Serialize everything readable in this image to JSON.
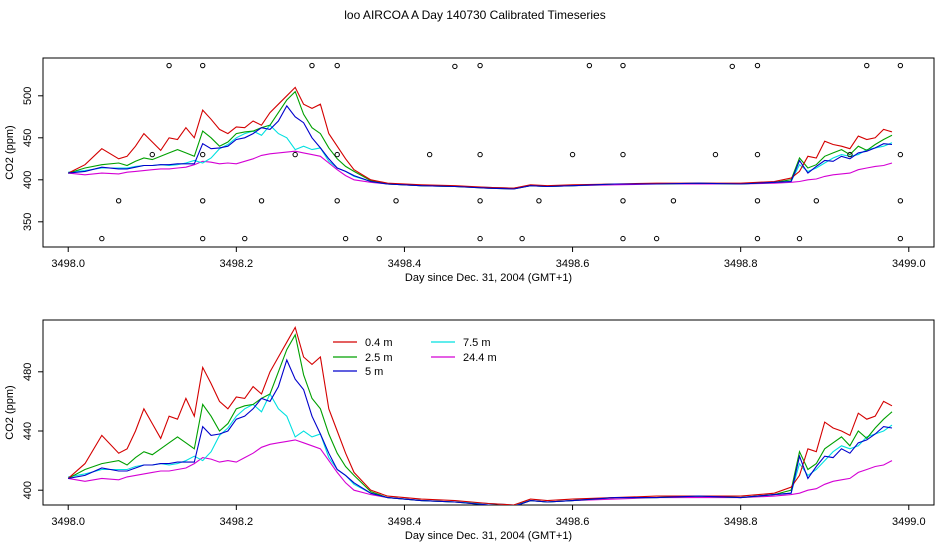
{
  "title": "loo AIRCOA A  Day 140730  Calibrated Timeseries",
  "colors": {
    "0.4 m": "#d40000",
    "2.5 m": "#00a000",
    "5 m": "#0000cc",
    "7.5 m": "#00e0e0",
    "24.4 m": "#d400d4"
  },
  "chart_data": [
    {
      "type": "line",
      "xlabel": "Day since Dec. 31, 2004 (GMT+1)",
      "ylabel": "CO2 (ppm)",
      "xlim": [
        3497.97,
        3499.03
      ],
      "ylim": [
        320,
        545
      ],
      "x_ticks": [
        "3498.0",
        "3498.2",
        "3498.4",
        "3498.6",
        "3498.8",
        "3499.0"
      ],
      "y_ticks": [
        "350",
        "400",
        "450",
        "500"
      ],
      "legend": "none",
      "calibration_points": [
        [
          3498.04,
          330
        ],
        [
          3498.06,
          375
        ],
        [
          3498.1,
          430
        ],
        [
          3498.12,
          536
        ],
        [
          3498.16,
          330
        ],
        [
          3498.16,
          375
        ],
        [
          3498.16,
          430
        ],
        [
          3498.16,
          536
        ],
        [
          3498.21,
          330
        ],
        [
          3498.23,
          375
        ],
        [
          3498.27,
          430
        ],
        [
          3498.29,
          536
        ],
        [
          3498.32,
          536
        ],
        [
          3498.32,
          430
        ],
        [
          3498.32,
          375
        ],
        [
          3498.33,
          330
        ],
        [
          3498.37,
          330
        ],
        [
          3498.39,
          375
        ],
        [
          3498.43,
          430
        ],
        [
          3498.46,
          535
        ],
        [
          3498.49,
          330
        ],
        [
          3498.49,
          375
        ],
        [
          3498.49,
          430
        ],
        [
          3498.49,
          536
        ],
        [
          3498.54,
          330
        ],
        [
          3498.56,
          375
        ],
        [
          3498.6,
          430
        ],
        [
          3498.62,
          536
        ],
        [
          3498.66,
          536
        ],
        [
          3498.66,
          430
        ],
        [
          3498.66,
          375
        ],
        [
          3498.66,
          330
        ],
        [
          3498.7,
          330
        ],
        [
          3498.72,
          375
        ],
        [
          3498.77,
          430
        ],
        [
          3498.79,
          535
        ],
        [
          3498.82,
          330
        ],
        [
          3498.82,
          375
        ],
        [
          3498.82,
          430
        ],
        [
          3498.82,
          536
        ],
        [
          3498.87,
          330
        ],
        [
          3498.89,
          375
        ],
        [
          3498.93,
          430
        ],
        [
          3498.95,
          536
        ],
        [
          3498.99,
          536
        ],
        [
          3498.99,
          430
        ],
        [
          3498.99,
          375
        ],
        [
          3498.99,
          330
        ]
      ]
    },
    {
      "type": "line",
      "xlabel": "Day since Dec. 31, 2004 (GMT+1)",
      "ylabel": "CO2 (ppm)",
      "xlim": [
        3497.97,
        3499.03
      ],
      "ylim": [
        390,
        515
      ],
      "x_ticks": [
        "3498.0",
        "3498.2",
        "3498.4",
        "3498.6",
        "3498.8",
        "3499.0"
      ],
      "y_ticks": [
        "400",
        "440",
        "480"
      ],
      "legend": "top-left",
      "legend_labels": [
        "0.4 m",
        "2.5 m",
        "5 m",
        "7.5 m",
        "24.4 m"
      ]
    }
  ],
  "series": [
    {
      "name": "0.4 m",
      "x": [
        3498.0,
        3498.02,
        3498.04,
        3498.06,
        3498.07,
        3498.08,
        3498.09,
        3498.1,
        3498.11,
        3498.12,
        3498.13,
        3498.14,
        3498.15,
        3498.16,
        3498.17,
        3498.18,
        3498.19,
        3498.2,
        3498.21,
        3498.22,
        3498.23,
        3498.24,
        3498.25,
        3498.26,
        3498.27,
        3498.28,
        3498.29,
        3498.3,
        3498.31,
        3498.32,
        3498.33,
        3498.34,
        3498.36,
        3498.38,
        3498.42,
        3498.46,
        3498.5,
        3498.53,
        3498.55,
        3498.57,
        3498.6,
        3498.65,
        3498.7,
        3498.75,
        3498.8,
        3498.84,
        3498.86,
        3498.87,
        3498.88,
        3498.89,
        3498.9,
        3498.91,
        3498.92,
        3498.93,
        3498.94,
        3498.95,
        3498.96,
        3498.97,
        3498.98
      ],
      "y": [
        408,
        418,
        437,
        425,
        428,
        440,
        455,
        445,
        435,
        450,
        448,
        462,
        450,
        483,
        472,
        460,
        455,
        463,
        462,
        470,
        465,
        480,
        490,
        500,
        510,
        490,
        485,
        490,
        455,
        440,
        425,
        412,
        400,
        396,
        394,
        393,
        391,
        390,
        394,
        393,
        394,
        395,
        396,
        396,
        396,
        398,
        402,
        410,
        428,
        426,
        446,
        442,
        440,
        437,
        452,
        448,
        450,
        460,
        457
      ]
    },
    {
      "name": "2.5 m",
      "x": [
        3498.0,
        3498.02,
        3498.04,
        3498.06,
        3498.07,
        3498.08,
        3498.09,
        3498.1,
        3498.11,
        3498.12,
        3498.13,
        3498.14,
        3498.15,
        3498.16,
        3498.17,
        3498.18,
        3498.19,
        3498.2,
        3498.21,
        3498.22,
        3498.23,
        3498.24,
        3498.25,
        3498.26,
        3498.27,
        3498.28,
        3498.29,
        3498.3,
        3498.31,
        3498.32,
        3498.33,
        3498.34,
        3498.36,
        3498.38,
        3498.42,
        3498.46,
        3498.5,
        3498.53,
        3498.55,
        3498.57,
        3498.6,
        3498.65,
        3498.7,
        3498.75,
        3498.8,
        3498.84,
        3498.86,
        3498.87,
        3498.88,
        3498.89,
        3498.9,
        3498.91,
        3498.92,
        3498.93,
        3498.94,
        3498.95,
        3498.96,
        3498.97,
        3498.98
      ],
      "y": [
        408,
        414,
        418,
        420,
        417,
        422,
        426,
        424,
        428,
        432,
        436,
        432,
        428,
        458,
        450,
        440,
        445,
        455,
        457,
        458,
        462,
        465,
        480,
        495,
        505,
        478,
        462,
        455,
        438,
        425,
        416,
        410,
        399,
        395,
        393,
        392,
        390,
        389,
        393,
        392,
        393,
        395,
        395,
        396,
        395,
        397,
        400,
        426,
        414,
        418,
        428,
        432,
        436,
        430,
        440,
        435,
        442,
        448,
        453
      ]
    },
    {
      "name": "5 m",
      "x": [
        3498.0,
        3498.02,
        3498.04,
        3498.06,
        3498.07,
        3498.08,
        3498.09,
        3498.1,
        3498.11,
        3498.12,
        3498.13,
        3498.14,
        3498.15,
        3498.16,
        3498.17,
        3498.18,
        3498.19,
        3498.2,
        3498.21,
        3498.22,
        3498.23,
        3498.24,
        3498.25,
        3498.26,
        3498.27,
        3498.28,
        3498.29,
        3498.3,
        3498.31,
        3498.32,
        3498.33,
        3498.34,
        3498.36,
        3498.38,
        3498.42,
        3498.46,
        3498.5,
        3498.53,
        3498.55,
        3498.57,
        3498.6,
        3498.65,
        3498.7,
        3498.75,
        3498.8,
        3498.84,
        3498.86,
        3498.87,
        3498.88,
        3498.89,
        3498.9,
        3498.91,
        3498.92,
        3498.93,
        3498.94,
        3498.95,
        3498.96,
        3498.97,
        3498.98
      ],
      "y": [
        408,
        410,
        415,
        413,
        413,
        415,
        417,
        417,
        418,
        418,
        419,
        419,
        419,
        443,
        437,
        438,
        440,
        448,
        450,
        455,
        462,
        460,
        470,
        488,
        475,
        468,
        450,
        438,
        425,
        414,
        410,
        405,
        398,
        395,
        393,
        392,
        390,
        389,
        393,
        392,
        393,
        395,
        395,
        396,
        395,
        397,
        398,
        423,
        408,
        416,
        423,
        422,
        428,
        425,
        432,
        434,
        438,
        443,
        442
      ]
    },
    {
      "name": "7.5 m",
      "x": [
        3498.0,
        3498.02,
        3498.04,
        3498.06,
        3498.07,
        3498.08,
        3498.09,
        3498.1,
        3498.11,
        3498.12,
        3498.13,
        3498.14,
        3498.15,
        3498.16,
        3498.17,
        3498.18,
        3498.19,
        3498.2,
        3498.21,
        3498.22,
        3498.23,
        3498.24,
        3498.25,
        3498.26,
        3498.27,
        3498.28,
        3498.29,
        3498.3,
        3498.31,
        3498.32,
        3498.33,
        3498.34,
        3498.36,
        3498.38,
        3498.42,
        3498.46,
        3498.5,
        3498.53,
        3498.55,
        3498.57,
        3498.6,
        3498.65,
        3498.7,
        3498.75,
        3498.8,
        3498.84,
        3498.86,
        3498.87,
        3498.88,
        3498.89,
        3498.9,
        3498.91,
        3498.92,
        3498.93,
        3498.94,
        3498.95,
        3498.96,
        3498.97,
        3498.98
      ],
      "y": [
        409,
        411,
        414,
        414,
        414,
        416,
        417,
        417,
        418,
        417,
        418,
        420,
        423,
        420,
        426,
        437,
        442,
        450,
        455,
        458,
        453,
        465,
        455,
        450,
        436,
        440,
        436,
        438,
        422,
        414,
        410,
        404,
        398,
        395,
        393,
        392,
        391,
        390,
        393,
        392,
        393,
        395,
        395,
        396,
        395,
        397,
        398,
        418,
        410,
        414,
        420,
        426,
        430,
        428,
        430,
        436,
        438,
        440,
        444
      ]
    },
    {
      "name": "24.4 m",
      "x": [
        3498.0,
        3498.02,
        3498.04,
        3498.06,
        3498.07,
        3498.08,
        3498.09,
        3498.1,
        3498.11,
        3498.12,
        3498.13,
        3498.14,
        3498.15,
        3498.16,
        3498.17,
        3498.18,
        3498.19,
        3498.2,
        3498.21,
        3498.22,
        3498.23,
        3498.24,
        3498.25,
        3498.26,
        3498.27,
        3498.28,
        3498.29,
        3498.3,
        3498.31,
        3498.32,
        3498.33,
        3498.34,
        3498.36,
        3498.38,
        3498.42,
        3498.46,
        3498.5,
        3498.53,
        3498.55,
        3498.57,
        3498.6,
        3498.65,
        3498.7,
        3498.75,
        3498.8,
        3498.84,
        3498.86,
        3498.87,
        3498.88,
        3498.89,
        3498.9,
        3498.91,
        3498.92,
        3498.93,
        3498.94,
        3498.95,
        3498.96,
        3498.97,
        3498.98
      ],
      "y": [
        408,
        406,
        408,
        407,
        409,
        410,
        411,
        412,
        413,
        413,
        414,
        415,
        418,
        422,
        421,
        419,
        420,
        419,
        422,
        425,
        429,
        431,
        432,
        433,
        434,
        432,
        430,
        428,
        420,
        412,
        405,
        400,
        397,
        395,
        393,
        392,
        391,
        390,
        393,
        392,
        393,
        394,
        395,
        395,
        395,
        396,
        397,
        398,
        400,
        401,
        404,
        406,
        407,
        408,
        412,
        414,
        416,
        417,
        420
      ]
    }
  ]
}
